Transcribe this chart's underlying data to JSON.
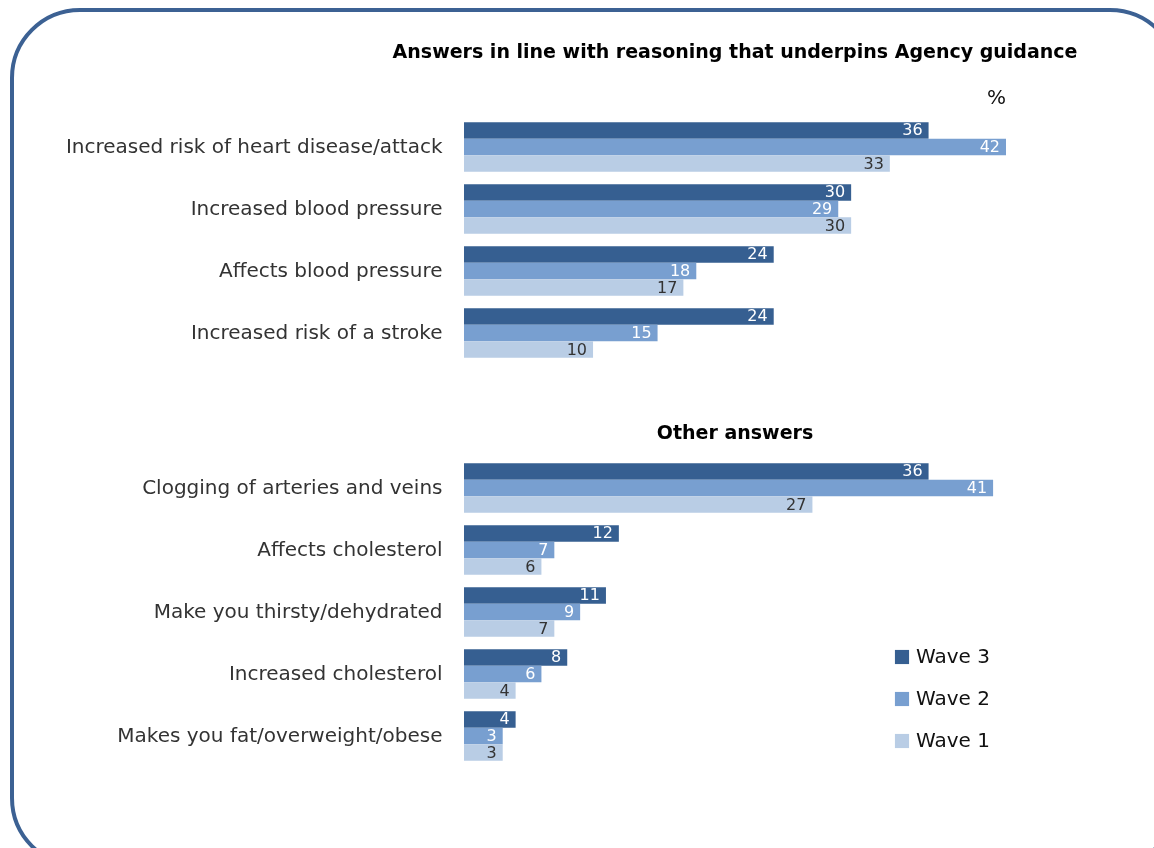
{
  "chart_data": [
    {
      "type": "bar",
      "orientation": "horizontal",
      "title": "Answers in line with reasoning that underpins Agency guidance",
      "annotations": [
        "%"
      ],
      "data_labels": true,
      "categories": [
        "Increased risk of heart disease/attack",
        "Increased blood pressure",
        "Affects blood pressure",
        "Increased risk of a stroke"
      ],
      "series": [
        {
          "color": "#365f91",
          "values": [
            36,
            30,
            24,
            24
          ]
        },
        {
          "color": "#789fd0",
          "values": [
            42,
            29,
            18,
            15
          ]
        },
        {
          "color": "#b9cde5",
          "values": [
            33,
            30,
            17,
            10
          ]
        }
      ]
    },
    {
      "type": "bar",
      "orientation": "horizontal",
      "title": "Other answers",
      "data_labels": true,
      "legend": "bottom right",
      "categories": [
        "Clogging of arteries and veins",
        "Affects cholesterol",
        "Make you thirsty/dehydrated",
        "Increased cholesterol",
        "Makes you fat/overweight/obese"
      ],
      "series": [
        {
          "name": "Wave 3",
          "color": "#365f91",
          "values": [
            36,
            12,
            11,
            8,
            4
          ]
        },
        {
          "name": "Wave 2",
          "color": "#789fd0",
          "values": [
            41,
            7,
            9,
            6,
            3
          ]
        },
        {
          "name": "Wave 1",
          "color": "#b9cde5",
          "values": [
            27,
            6,
            7,
            4,
            3
          ]
        }
      ]
    }
  ]
}
